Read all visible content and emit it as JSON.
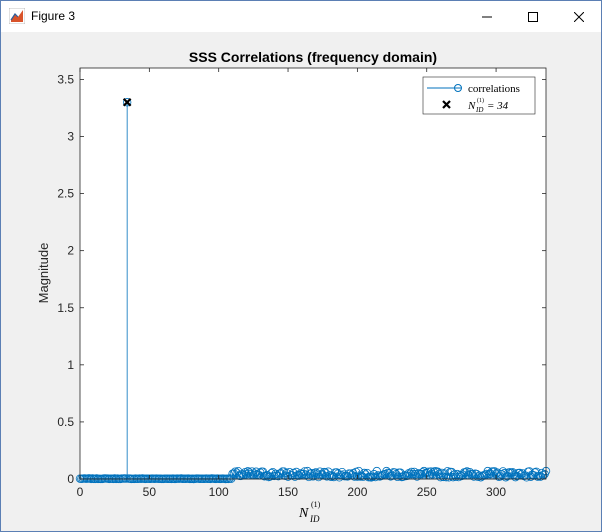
{
  "window": {
    "title": "Figure 3",
    "icon": "matlab-figure-icon",
    "controls": [
      "minimize-icon",
      "maximize-icon",
      "close-icon"
    ]
  },
  "chart_data": {
    "type": "stem",
    "title": "SSS Correlations (frequency domain)",
    "xlabel": "N_ID^(1)",
    "ylabel": "Magnitude",
    "xlim": [
      0,
      336
    ],
    "ylim": [
      0,
      3.6
    ],
    "xticks": [
      "0",
      "50",
      "100",
      "150",
      "200",
      "250",
      "300"
    ],
    "yticks": [
      "0",
      "0.5",
      "1",
      "1.5",
      "2",
      "2.5",
      "3",
      "3.5"
    ],
    "legend": {
      "placement": "top-right",
      "entries": [
        {
          "label": "correlations",
          "marker": "circle"
        },
        {
          "label": "N_ID^(1) = 34",
          "marker": "x"
        }
      ]
    },
    "series": [
      {
        "name": "correlations",
        "color": "#0072BD",
        "peak_index": 34,
        "peak_value": 3.3,
        "baseline_low": 0.005,
        "noise_start": 110,
        "noise_max": 0.07
      }
    ],
    "highlight": {
      "x": 34,
      "y": 3.3
    },
    "colors": {
      "stem": "#0072BD",
      "marker_x": "#000000",
      "axes": "#262626"
    }
  }
}
